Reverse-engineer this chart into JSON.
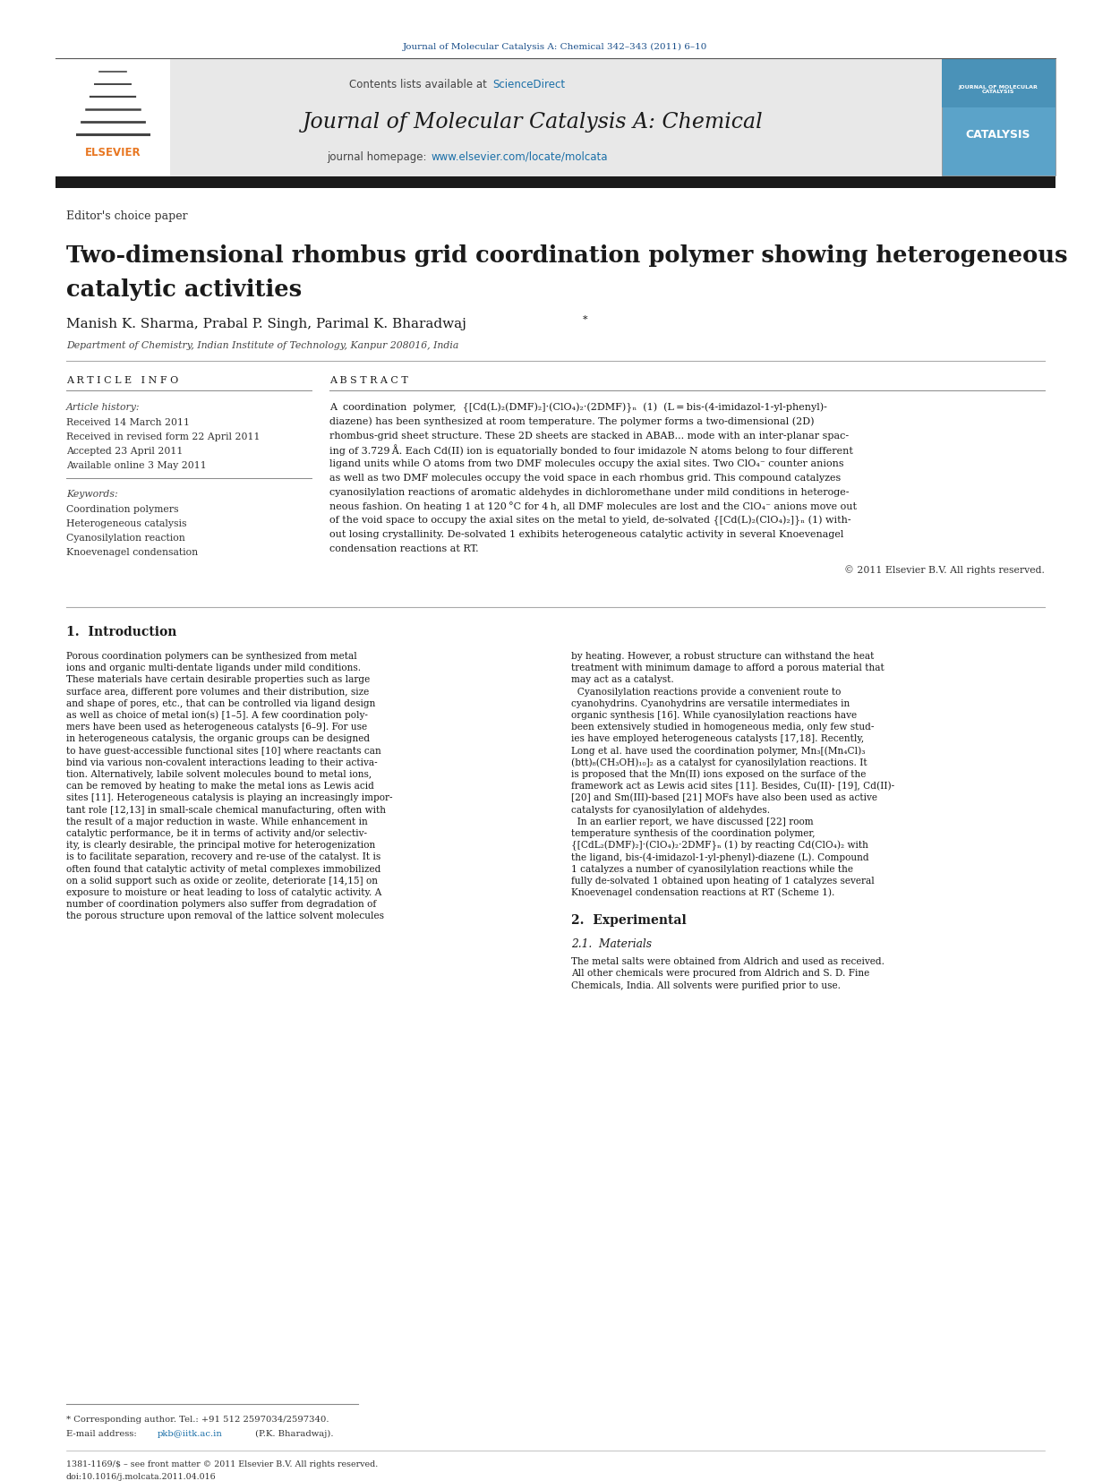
{
  "page_width": 12.41,
  "page_height": 16.54,
  "bg_color": "#ffffff",
  "top_citation": "Journal of Molecular Catalysis A: Chemical 342–343 (2011) 6–10",
  "top_citation_color": "#1a4f8a",
  "header_bg": "#e8e8e8",
  "header_sciencedirect_color": "#1a6fa8",
  "journal_title": "Journal of Molecular Catalysis A: Chemical",
  "journal_homepage_url": "www.elsevier.com/locate/molcata",
  "journal_homepage_url_color": "#1a6fa8",
  "editor_label": "Editor's choice paper",
  "paper_title_line1": "Two-dimensional rhombus grid coordination polymer showing heterogeneous",
  "paper_title_line2": "catalytic activities",
  "paper_title_color": "#1a1a1a",
  "authors": "Manish K. Sharma, Prabal P. Singh, Parimal K. Bharadwaj",
  "affiliation": "Department of Chemistry, Indian Institute of Technology, Kanpur 208016, India",
  "article_info_header": "A R T I C L E   I N F O",
  "abstract_header": "A B S T R A C T",
  "article_history_label": "Article history:",
  "received_1": "Received 14 March 2011",
  "received_2": "Received in revised form 22 April 2011",
  "accepted": "Accepted 23 April 2011",
  "available": "Available online 3 May 2011",
  "keywords_label": "Keywords:",
  "keyword_1": "Coordination polymers",
  "keyword_2": "Heterogeneous catalysis",
  "keyword_3": "Cyanosilylation reaction",
  "keyword_4": "Knoevenagel condensation",
  "abstract_lines": [
    "A  coordination  polymer,  {[Cd(L)₂(DMF)₂]·(ClO₄)₂·(2DMF)}ₙ  (1)  (L = bis-(4-imidazol-1-yl-phenyl)-",
    "diazene) has been synthesized at room temperature. The polymer forms a two-dimensional (2D)",
    "rhombus-grid sheet structure. These 2D sheets are stacked in ABAB... mode with an inter-planar spac-",
    "ing of 3.729 Å. Each Cd(II) ion is equatorially bonded to four imidazole N atoms belong to four different",
    "ligand units while O atoms from two DMF molecules occupy the axial sites. Two ClO₄⁻ counter anions",
    "as well as two DMF molecules occupy the void space in each rhombus grid. This compound catalyzes",
    "cyanosilylation reactions of aromatic aldehydes in dichloromethane under mild conditions in heteroge-",
    "neous fashion. On heating 1 at 120 °C for 4 h, all DMF molecules are lost and the ClO₄⁻ anions move out",
    "of the void space to occupy the axial sites on the metal to yield, de-solvated {[Cd(L)₂(ClO₄)₂]}ₙ (1) with-",
    "out losing crystallinity. De-solvated 1 exhibits heterogeneous catalytic activity in several Knoevenagel",
    "condensation reactions at RT."
  ],
  "copyright": "© 2011 Elsevier B.V. All rights reserved.",
  "intro_header": "1.  Introduction",
  "intro_col1_lines": [
    "Porous coordination polymers can be synthesized from metal",
    "ions and organic multi-dentate ligands under mild conditions.",
    "These materials have certain desirable properties such as large",
    "surface area, different pore volumes and their distribution, size",
    "and shape of pores, etc., that can be controlled via ligand design",
    "as well as choice of metal ion(s) [1–5]. A few coordination poly-",
    "mers have been used as heterogeneous catalysts [6–9]. For use",
    "in heterogeneous catalysis, the organic groups can be designed",
    "to have guest-accessible functional sites [10] where reactants can",
    "bind via various non-covalent interactions leading to their activa-",
    "tion. Alternatively, labile solvent molecules bound to metal ions,",
    "can be removed by heating to make the metal ions as Lewis acid",
    "sites [11]. Heterogeneous catalysis is playing an increasingly impor-",
    "tant role [12,13] in small-scale chemical manufacturing, often with",
    "the result of a major reduction in waste. While enhancement in",
    "catalytic performance, be it in terms of activity and/or selectiv-",
    "ity, is clearly desirable, the principal motive for heterogenization",
    "is to facilitate separation, recovery and re-use of the catalyst. It is",
    "often found that catalytic activity of metal complexes immobilized",
    "on a solid support such as oxide or zeolite, deteriorate [14,15] on",
    "exposure to moisture or heat leading to loss of catalytic activity. A",
    "number of coordination polymers also suffer from degradation of",
    "the porous structure upon removal of the lattice solvent molecules"
  ],
  "intro_col2_lines": [
    "by heating. However, a robust structure can withstand the heat",
    "treatment with minimum damage to afford a porous material that",
    "may act as a catalyst.",
    "  Cyanosilylation reactions provide a convenient route to",
    "cyanohydrins. Cyanohydrins are versatile intermediates in",
    "organic synthesis [16]. While cyanosilylation reactions have",
    "been extensively studied in homogeneous media, only few stud-",
    "ies have employed heterogeneous catalysts [17,18]. Recently,",
    "Long et al. have used the coordination polymer, Mn₃[(Mn₄Cl)₃",
    "(btt)₈(CH₃OH)₁₀]₂ as a catalyst for cyanosilylation reactions. It",
    "is proposed that the Mn(II) ions exposed on the surface of the",
    "framework act as Lewis acid sites [11]. Besides, Cu(II)- [19], Cd(II)-",
    "[20] and Sm(III)-based [21] MOFs have also been used as active",
    "catalysts for cyanosilylation of aldehydes.",
    "  In an earlier report, we have discussed [22] room",
    "temperature synthesis of the coordination polymer,",
    "{[CdL₂(DMF)₂]·(ClO₄)₂·2DMF}ₙ (1) by reacting Cd(ClO₄)₂ with",
    "the ligand, bis-(4-imidazol-1-yl-phenyl)-diazene (L). Compound",
    "1 catalyzes a number of cyanosilylation reactions while the",
    "fully de-solvated 1 obtained upon heating of 1 catalyzes several",
    "Knoevenagel condensation reactions at RT (Scheme 1)."
  ],
  "section2_header": "2.  Experimental",
  "section21_header": "2.1.  Materials",
  "materials_lines": [
    "The metal salts were obtained from Aldrich and used as received.",
    "All other chemicals were procured from Aldrich and S. D. Fine",
    "Chemicals, India. All solvents were purified prior to use."
  ],
  "footnote_corresponding": "* Corresponding author. Tel.: +91 512 2597034/2597340.",
  "footnote_email_prefix": "E-mail address: ",
  "footnote_email": "pkb@iitk.ac.in",
  "footnote_email_color": "#1a6fa8",
  "footnote_email_suffix": " (P.K. Bharadwaj).",
  "footer_line1": "1381-1169/$ – see front matter © 2011 Elsevier B.V. All rights reserved.",
  "footer_line2": "doi:10.1016/j.molcata.2011.04.016"
}
